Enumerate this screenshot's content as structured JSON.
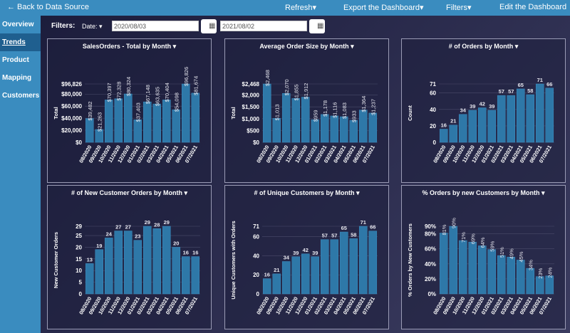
{
  "topbar": {
    "back": "← Back to Data Source",
    "refresh": "Refresh▾",
    "export": "Export the Dashboard▾",
    "filters": "Filters▾",
    "edit": "Edit the Dashboard"
  },
  "sidebar": {
    "items": [
      {
        "label": "Overview"
      },
      {
        "label": "Trends",
        "active": true
      },
      {
        "label": "Product"
      },
      {
        "label": "Mapping"
      },
      {
        "label": "Customers"
      }
    ]
  },
  "filters": {
    "label": "Filters:",
    "date_label": "Date: ▾",
    "start": "2020/08/03",
    "end": "2021/08/02",
    "calendar_icon": "calendar-icon"
  },
  "colors": {
    "bar": "#2e78a8",
    "topbar": "#3a8cbf"
  },
  "chart_data": [
    {
      "type": "bar",
      "title": "SalesOrders - Total by Month ▾",
      "ylabel": "Total",
      "categories": [
        "08/2020",
        "09/2020",
        "10/2020",
        "11/2020",
        "12/2020",
        "01/2021",
        "02/2021",
        "03/2021",
        "04/2021",
        "05/2021",
        "06/2021",
        "07/2021"
      ],
      "values": [
        39482,
        21263,
        70397,
        72328,
        80324,
        37403,
        67148,
        63635,
        70404,
        54098,
        96826,
        81674
      ],
      "data_labels": [
        "$39,482",
        "$21,263",
        "$70,397",
        "$72,328",
        "$80,324",
        "$37,403",
        "$67,148",
        "$63,635",
        "$70,404",
        "$54,098",
        "$96,826",
        "$81,674"
      ],
      "ylim": [
        0,
        96826
      ],
      "yticks": [
        0,
        20000,
        40000,
        60000,
        80000,
        96826
      ],
      "ytick_labels": [
        "$0",
        "$20,000",
        "$40,000",
        "$60,000",
        "$80,000",
        "$96,826"
      ],
      "rotate_labels": true
    },
    {
      "type": "bar",
      "title": "Average Order Size by Month ▾",
      "ylabel": "Total",
      "categories": [
        "08/2020",
        "09/2020",
        "10/2020",
        "11/2020",
        "12/2020",
        "01/2021",
        "02/2021",
        "03/2021",
        "04/2021",
        "05/2021",
        "06/2021",
        "07/2021"
      ],
      "values": [
        2468,
        1013,
        2070,
        1855,
        1912,
        959,
        1178,
        1116,
        1083,
        933,
        1364,
        1237
      ],
      "data_labels": [
        "$2,468",
        "$1,013",
        "$2,070",
        "$1,855",
        "$1,912",
        "$959",
        "$1,178",
        "$1,116",
        "$1,083",
        "$933",
        "$1,364",
        "$1,237"
      ],
      "ylim": [
        0,
        2468
      ],
      "yticks": [
        0,
        500,
        1000,
        1500,
        2000,
        2468
      ],
      "ytick_labels": [
        "$0",
        "$500",
        "$1,000",
        "$1,500",
        "$2,000",
        "$2,468"
      ],
      "rotate_labels": true
    },
    {
      "type": "bar",
      "title": "# of Orders by Month ▾",
      "ylabel": "Count",
      "categories": [
        "08/2020",
        "09/2020",
        "10/2020",
        "11/2020",
        "12/2020",
        "01/2021",
        "02/2021",
        "03/2021",
        "04/2021",
        "05/2021",
        "06/2021",
        "07/2021"
      ],
      "values": [
        16,
        21,
        34,
        39,
        42,
        39,
        57,
        57,
        65,
        58,
        71,
        66
      ],
      "data_labels": [
        "16",
        "21",
        "34",
        "39",
        "42",
        "39",
        "57",
        "57",
        "65",
        "58",
        "71",
        "66"
      ],
      "ylim": [
        0,
        71
      ],
      "yticks": [
        0,
        20,
        40,
        60,
        71
      ],
      "ytick_labels": [
        "0",
        "20",
        "40",
        "60",
        "71"
      ],
      "rotate_labels": false
    },
    {
      "type": "bar",
      "title": "# of New Customer Orders by Month ▾",
      "ylabel": "New Customer Orders",
      "categories": [
        "08/2020",
        "09/2020",
        "10/2020",
        "11/2020",
        "12/2020",
        "01/2021",
        "02/2021",
        "03/2021",
        "04/2021",
        "05/2021",
        "06/2021",
        "07/2021"
      ],
      "values": [
        13,
        19,
        24,
        27,
        27,
        23,
        29,
        28,
        29,
        20,
        16,
        16
      ],
      "data_labels": [
        "13",
        "19",
        "24",
        "27",
        "27",
        "23",
        "29",
        "28",
        "29",
        "20",
        "16",
        "16"
      ],
      "ylim": [
        0,
        29
      ],
      "yticks": [
        0,
        5,
        10,
        15,
        20,
        25,
        29
      ],
      "ytick_labels": [
        "0",
        "5",
        "10",
        "15",
        "20",
        "25",
        "29"
      ],
      "rotate_labels": false
    },
    {
      "type": "bar",
      "title": "# of Unique Customers by Month ▾",
      "ylabel": "Unique Customers with Orders",
      "categories": [
        "08/2020",
        "09/2020",
        "10/2020",
        "11/2020",
        "12/2020",
        "01/2021",
        "02/2021",
        "03/2021",
        "04/2021",
        "05/2021",
        "06/2021",
        "07/2021"
      ],
      "values": [
        16,
        21,
        34,
        39,
        42,
        39,
        57,
        57,
        65,
        58,
        71,
        66
      ],
      "data_labels": [
        "16",
        "21",
        "34",
        "39",
        "42",
        "39",
        "57",
        "57",
        "65",
        "58",
        "71",
        "66"
      ],
      "ylim": [
        0,
        71
      ],
      "yticks": [
        0,
        20,
        40,
        60,
        71
      ],
      "ytick_labels": [
        "0",
        "20",
        "40",
        "60",
        "71"
      ],
      "rotate_labels": false
    },
    {
      "type": "bar",
      "title": "% Orders by new Customers by Month ▾",
      "ylabel": "% Orders by New Customers",
      "categories": [
        "08/2020",
        "09/2020",
        "10/2020",
        "11/2020",
        "12/2020",
        "01/2021",
        "02/2021",
        "03/2021",
        "04/2021",
        "05/2021",
        "06/2021",
        "07/2021"
      ],
      "values": [
        81,
        90,
        71,
        69,
        64,
        59,
        51,
        49,
        45,
        34,
        23,
        24
      ],
      "data_labels": [
        "81%",
        "90%",
        "71%",
        "69%",
        "64%",
        "59%",
        "51%",
        "49%",
        "45%",
        "34%",
        "23%",
        "24%"
      ],
      "ylim": [
        0,
        90
      ],
      "yticks": [
        0,
        20,
        40,
        60,
        80,
        90
      ],
      "ytick_labels": [
        "0%",
        "20%",
        "40%",
        "60%",
        "80%",
        "90%"
      ],
      "rotate_labels": true
    }
  ]
}
